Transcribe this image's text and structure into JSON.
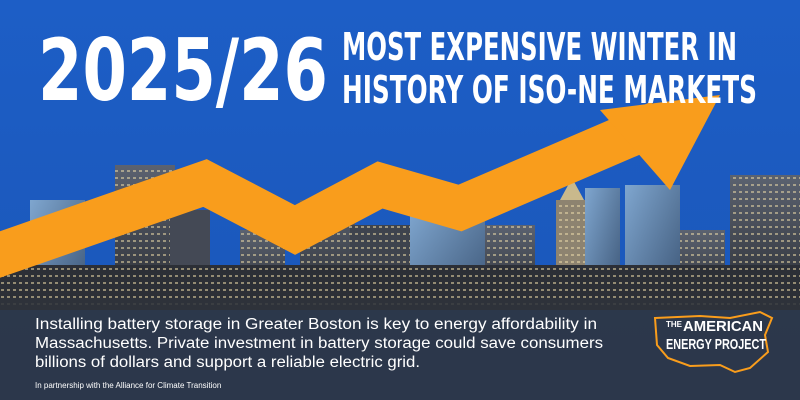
{
  "headline": {
    "year": "2025/26",
    "lines": [
      "MOST EXPENSIVE WINTER IN",
      "HISTORY OF ISO-NE MARKETS"
    ]
  },
  "body": {
    "lines": [
      "Installing battery storage in Greater Boston is key to energy affordability in",
      "Massachusetts. Private investment in battery storage could save consumers",
      "billions of dollars and support a reliable electric grid."
    ],
    "footnote": "In partnership with the Alliance for Climate Transition"
  },
  "logo": {
    "top": "THE",
    "line1": "AMERICAN",
    "line2": "ENERGY PROJECT"
  }
}
